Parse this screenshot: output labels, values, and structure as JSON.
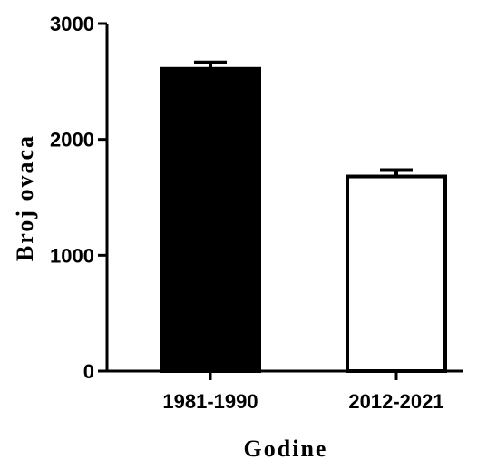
{
  "chart_data": {
    "type": "bar",
    "title": "",
    "xlabel": "Godine",
    "ylabel": "Broj ovaca",
    "categories": [
      "1981-1990",
      "2012-2021"
    ],
    "values": [
      2610,
      1680
    ],
    "error": [
      55,
      55
    ],
    "ylim": [
      0,
      3000
    ],
    "yticks": [
      0,
      1000,
      2000,
      3000
    ],
    "grid": false,
    "bar_fills": [
      "#000000",
      "#ffffff"
    ],
    "bar_stroke": "#000000"
  }
}
